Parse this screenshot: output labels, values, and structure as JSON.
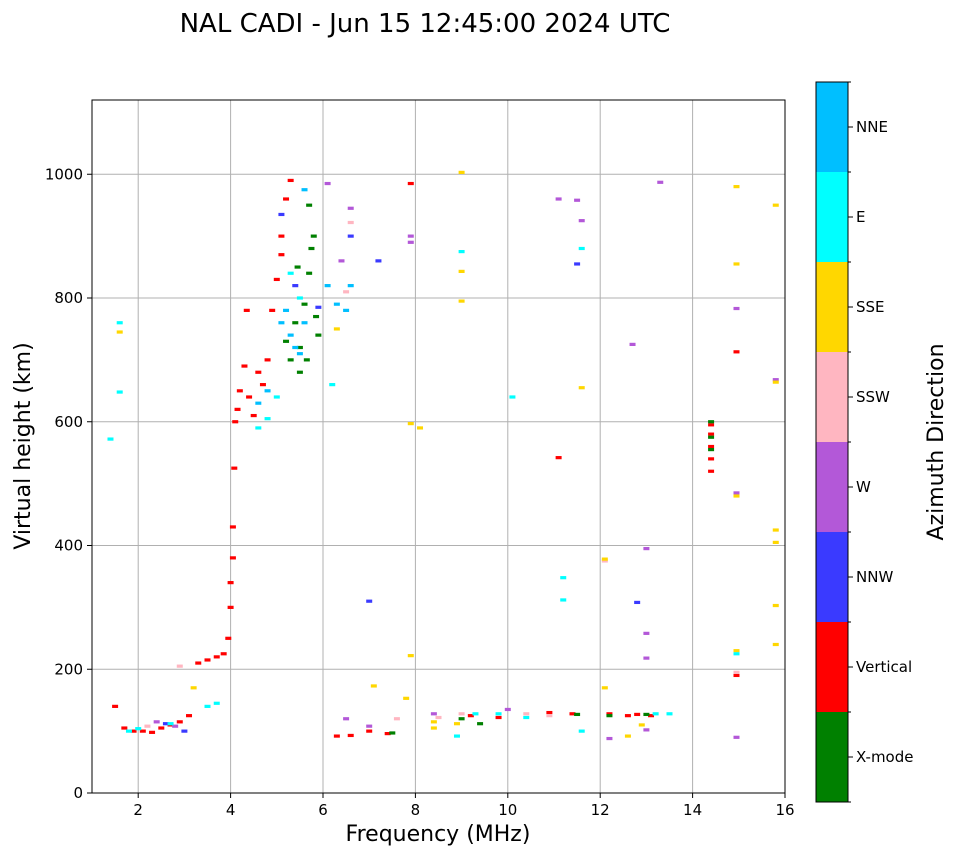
{
  "chart_data": {
    "type": "scatter",
    "title": "NAL CADI - Jun 15 12:45:00 2024 UTC",
    "xlabel": "Frequency (MHz)",
    "ylabel": "Virtual height (km)",
    "colorbar_label": "Azimuth Direction",
    "xlim": [
      1,
      16
    ],
    "ylim": [
      0,
      1120
    ],
    "xticks": [
      2,
      4,
      6,
      8,
      10,
      12,
      14,
      16
    ],
    "yticks": [
      0,
      200,
      400,
      600,
      800,
      1000
    ],
    "grid": true,
    "categories": [
      {
        "name": "X-mode",
        "color": "#008000"
      },
      {
        "name": "Vertical",
        "color": "#ff0000"
      },
      {
        "name": "NNW",
        "color": "#3a3aff"
      },
      {
        "name": "W",
        "color": "#b358d8"
      },
      {
        "name": "SSW",
        "color": "#ffb6c1"
      },
      {
        "name": "SSE",
        "color": "#ffd700"
      },
      {
        "name": "E",
        "color": "#00ffff"
      },
      {
        "name": "NNE",
        "color": "#00bfff"
      }
    ],
    "series": [
      {
        "name": "Vertical",
        "points": [
          [
            1.5,
            140
          ],
          [
            1.7,
            105
          ],
          [
            1.9,
            100
          ],
          [
            2.1,
            100
          ],
          [
            2.3,
            98
          ],
          [
            2.5,
            105
          ],
          [
            2.7,
            110
          ],
          [
            2.9,
            115
          ],
          [
            3.1,
            125
          ],
          [
            3.3,
            210
          ],
          [
            3.5,
            215
          ],
          [
            3.7,
            220
          ],
          [
            3.85,
            225
          ],
          [
            3.95,
            250
          ],
          [
            4.0,
            300
          ],
          [
            4.0,
            340
          ],
          [
            4.05,
            380
          ],
          [
            4.05,
            430
          ],
          [
            4.08,
            525
          ],
          [
            4.1,
            600
          ],
          [
            4.15,
            620
          ],
          [
            4.2,
            650
          ],
          [
            4.3,
            690
          ],
          [
            4.4,
            640
          ],
          [
            4.5,
            610
          ],
          [
            4.6,
            680
          ],
          [
            4.7,
            660
          ],
          [
            4.8,
            700
          ],
          [
            4.9,
            780
          ],
          [
            5.0,
            830
          ],
          [
            5.1,
            900
          ],
          [
            5.2,
            960
          ],
          [
            5.3,
            990
          ],
          [
            5.1,
            870
          ],
          [
            4.35,
            780
          ],
          [
            6.3,
            92
          ],
          [
            6.6,
            93
          ],
          [
            7.0,
            100
          ],
          [
            7.4,
            96
          ],
          [
            7.9,
            985
          ],
          [
            9.2,
            125
          ],
          [
            9.8,
            122
          ],
          [
            10.9,
            130
          ],
          [
            11.1,
            542
          ],
          [
            11.4,
            128
          ],
          [
            12.2,
            128
          ],
          [
            12.6,
            125
          ],
          [
            12.8,
            127
          ],
          [
            13.1,
            125
          ],
          [
            14.4,
            595
          ],
          [
            14.4,
            580
          ],
          [
            14.4,
            560
          ],
          [
            14.4,
            540
          ],
          [
            14.4,
            520
          ],
          [
            14.95,
            713
          ],
          [
            14.95,
            190
          ]
        ]
      },
      {
        "name": "X-mode",
        "points": [
          [
            5.2,
            730
          ],
          [
            5.4,
            760
          ],
          [
            5.5,
            720
          ],
          [
            5.6,
            790
          ],
          [
            5.7,
            840
          ],
          [
            5.75,
            880
          ],
          [
            5.8,
            900
          ],
          [
            5.65,
            700
          ],
          [
            5.5,
            680
          ],
          [
            5.85,
            770
          ],
          [
            5.9,
            740
          ],
          [
            5.7,
            950
          ],
          [
            5.3,
            700
          ],
          [
            5.45,
            850
          ],
          [
            9.0,
            120
          ],
          [
            9.4,
            112
          ],
          [
            11.5,
            127
          ],
          [
            12.2,
            125
          ],
          [
            13.0,
            127
          ],
          [
            14.4,
            600
          ],
          [
            14.4,
            575
          ],
          [
            14.4,
            555
          ],
          [
            7.5,
            97
          ]
        ]
      },
      {
        "name": "NNW",
        "points": [
          [
            2.6,
            112
          ],
          [
            3.0,
            100
          ],
          [
            5.1,
            935
          ],
          [
            5.4,
            820
          ],
          [
            6.6,
            900
          ],
          [
            7.2,
            860
          ],
          [
            7.0,
            310
          ],
          [
            11.5,
            855
          ],
          [
            5.9,
            785
          ],
          [
            12.8,
            308
          ]
        ]
      },
      {
        "name": "W",
        "points": [
          [
            2.4,
            115
          ],
          [
            2.8,
            108
          ],
          [
            6.1,
            985
          ],
          [
            6.4,
            860
          ],
          [
            6.5,
            120
          ],
          [
            6.6,
            945
          ],
          [
            7.0,
            108
          ],
          [
            7.9,
            900
          ],
          [
            7.9,
            890
          ],
          [
            8.4,
            128
          ],
          [
            10.0,
            135
          ],
          [
            11.1,
            960
          ],
          [
            11.5,
            958
          ],
          [
            11.6,
            925
          ],
          [
            12.2,
            88
          ],
          [
            12.7,
            725
          ],
          [
            13.0,
            395
          ],
          [
            13.0,
            218
          ],
          [
            13.0,
            258
          ],
          [
            13.0,
            102
          ],
          [
            13.3,
            987
          ],
          [
            14.95,
            783
          ],
          [
            14.95,
            485
          ],
          [
            14.95,
            90
          ],
          [
            15.8,
            668
          ]
        ]
      },
      {
        "name": "SSW",
        "points": [
          [
            2.2,
            108
          ],
          [
            2.9,
            205
          ],
          [
            6.6,
            922
          ],
          [
            6.5,
            810
          ],
          [
            7.6,
            120
          ],
          [
            8.5,
            122
          ],
          [
            9.0,
            128
          ],
          [
            10.4,
            128
          ],
          [
            10.9,
            125
          ],
          [
            12.1,
            375
          ],
          [
            14.95,
            195
          ]
        ]
      },
      {
        "name": "SSE",
        "points": [
          [
            1.6,
            745
          ],
          [
            3.2,
            170
          ],
          [
            6.3,
            750
          ],
          [
            7.1,
            173
          ],
          [
            7.9,
            222
          ],
          [
            7.9,
            597
          ],
          [
            8.1,
            590
          ],
          [
            8.4,
            115
          ],
          [
            8.4,
            105
          ],
          [
            8.9,
            112
          ],
          [
            9.0,
            1003
          ],
          [
            9.0,
            843
          ],
          [
            9.0,
            795
          ],
          [
            11.6,
            655
          ],
          [
            12.1,
            170
          ],
          [
            12.1,
            378
          ],
          [
            12.6,
            92
          ],
          [
            12.9,
            110
          ],
          [
            14.95,
            980
          ],
          [
            14.95,
            855
          ],
          [
            14.95,
            480
          ],
          [
            14.95,
            230
          ],
          [
            15.8,
            950
          ],
          [
            15.8,
            664
          ],
          [
            15.8,
            425
          ],
          [
            15.8,
            405
          ],
          [
            15.8,
            303
          ],
          [
            15.8,
            240
          ],
          [
            7.8,
            153
          ]
        ]
      },
      {
        "name": "E",
        "points": [
          [
            1.4,
            572
          ],
          [
            1.6,
            760
          ],
          [
            1.6,
            648
          ],
          [
            1.8,
            100
          ],
          [
            2.0,
            104
          ],
          [
            2.7,
            112
          ],
          [
            3.5,
            140
          ],
          [
            3.7,
            145
          ],
          [
            4.6,
            590
          ],
          [
            4.8,
            605
          ],
          [
            5.0,
            640
          ],
          [
            5.3,
            840
          ],
          [
            5.5,
            800
          ],
          [
            6.2,
            660
          ],
          [
            8.9,
            92
          ],
          [
            9.0,
            875
          ],
          [
            9.3,
            128
          ],
          [
            9.8,
            128
          ],
          [
            10.1,
            640
          ],
          [
            10.4,
            122
          ],
          [
            11.2,
            348
          ],
          [
            11.2,
            312
          ],
          [
            11.6,
            880
          ],
          [
            11.6,
            100
          ],
          [
            13.2,
            128
          ],
          [
            13.5,
            128
          ],
          [
            14.95,
            225
          ]
        ]
      },
      {
        "name": "NNE",
        "points": [
          [
            5.6,
            975
          ],
          [
            5.1,
            760
          ],
          [
            5.2,
            780
          ],
          [
            5.3,
            740
          ],
          [
            5.4,
            720
          ],
          [
            5.5,
            710
          ],
          [
            5.6,
            760
          ],
          [
            6.1,
            820
          ],
          [
            6.3,
            790
          ],
          [
            6.5,
            780
          ],
          [
            6.6,
            820
          ],
          [
            4.6,
            630
          ],
          [
            4.8,
            650
          ]
        ]
      }
    ]
  }
}
